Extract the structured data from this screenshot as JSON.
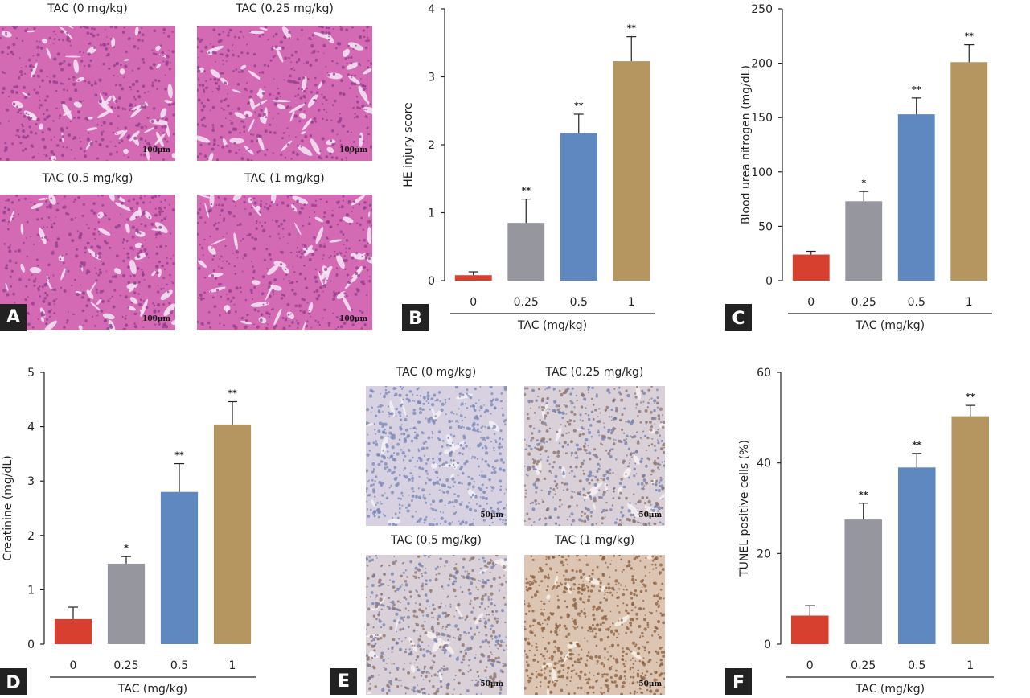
{
  "colors": {
    "bars": [
      "#d7402f",
      "#96969f",
      "#5f87c0",
      "#b69660"
    ],
    "he_tissue": [
      "#d46ab3",
      "#8f3c8c",
      "#f3e2f3"
    ],
    "tunel_low": [
      "#d7d1e2",
      "#7886b5",
      "#f3f0f4"
    ],
    "tunel_high": [
      "#dcc6b3",
      "#8b5e3e",
      "#f5ede4"
    ],
    "label_bg": "#222222"
  },
  "panel_A": {
    "label": "A",
    "images": [
      {
        "title": "TAC (0 mg/kg)",
        "scale": "100μm"
      },
      {
        "title": "TAC (0.25 mg/kg)",
        "scale": "100μm"
      },
      {
        "title": "TAC (0.5 mg/kg)",
        "scale": "100μm"
      },
      {
        "title": "TAC (1 mg/kg)",
        "scale": "100μm"
      }
    ]
  },
  "panel_E": {
    "label": "E",
    "images": [
      {
        "title": "TAC (0 mg/kg)",
        "scale": "50μm"
      },
      {
        "title": "TAC (0.25 mg/kg)",
        "scale": "50μm"
      },
      {
        "title": "TAC (0.5 mg/kg)",
        "scale": "50μm"
      },
      {
        "title": "TAC (1 mg/kg)",
        "scale": "50μm"
      }
    ]
  },
  "chart_data": [
    {
      "panel": "B",
      "type": "bar",
      "ylabel": "HE injury score",
      "xlabel": "TAC (mg/kg)",
      "categories": [
        "0",
        "0.25",
        "0.5",
        "1"
      ],
      "values": [
        0.08,
        0.85,
        2.17,
        3.23
      ],
      "errors": [
        0.05,
        0.35,
        0.28,
        0.36
      ],
      "significance": [
        "",
        "**",
        "**",
        "**"
      ],
      "ylim": [
        0,
        4
      ],
      "yticks": [
        0,
        1,
        2,
        3,
        4
      ]
    },
    {
      "panel": "C",
      "type": "bar",
      "ylabel": "Blood urea nitrogen (mg/dL)",
      "xlabel": "TAC (mg/kg)",
      "categories": [
        "0",
        "0.25",
        "0.5",
        "1"
      ],
      "values": [
        24,
        73,
        153,
        201
      ],
      "errors": [
        3,
        9,
        15,
        16
      ],
      "significance": [
        "",
        "*",
        "**",
        "**"
      ],
      "ylim": [
        0,
        250
      ],
      "yticks": [
        0,
        50,
        100,
        150,
        200,
        250
      ]
    },
    {
      "panel": "D",
      "type": "bar",
      "ylabel": "Creatinine (mg/dL)",
      "xlabel": "TAC (mg/kg)",
      "categories": [
        "0",
        "0.25",
        "0.5",
        "1"
      ],
      "values": [
        0.46,
        1.48,
        2.8,
        4.04
      ],
      "errors": [
        0.22,
        0.13,
        0.52,
        0.42
      ],
      "significance": [
        "",
        "*",
        "**",
        "**"
      ],
      "ylim": [
        0,
        5
      ],
      "yticks": [
        0,
        1,
        2,
        3,
        4,
        5
      ]
    },
    {
      "panel": "F",
      "type": "bar",
      "ylabel": "TUNEL positive cells (%)",
      "xlabel": "TAC (mg/kg)",
      "categories": [
        "0",
        "0.25",
        "0.5",
        "1"
      ],
      "values": [
        6.3,
        27.5,
        39,
        50.3
      ],
      "errors": [
        2.2,
        3.6,
        3.1,
        2.4
      ],
      "significance": [
        "",
        "**",
        "**",
        "**"
      ],
      "ylim": [
        0,
        60
      ],
      "yticks": [
        0,
        20,
        40,
        60
      ]
    }
  ]
}
